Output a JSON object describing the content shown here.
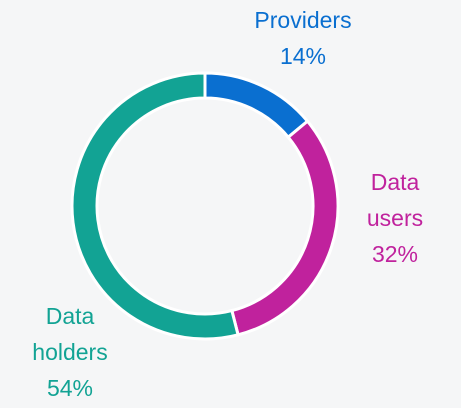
{
  "chart_data": {
    "type": "donut",
    "categories": [
      "Providers",
      "Data users",
      "Data holders"
    ],
    "values": [
      14,
      32,
      54
    ],
    "value_labels": [
      "14%",
      "32%",
      "54%"
    ],
    "colors": [
      "#0a6fd0",
      "#c0229d",
      "#12a394"
    ]
  }
}
